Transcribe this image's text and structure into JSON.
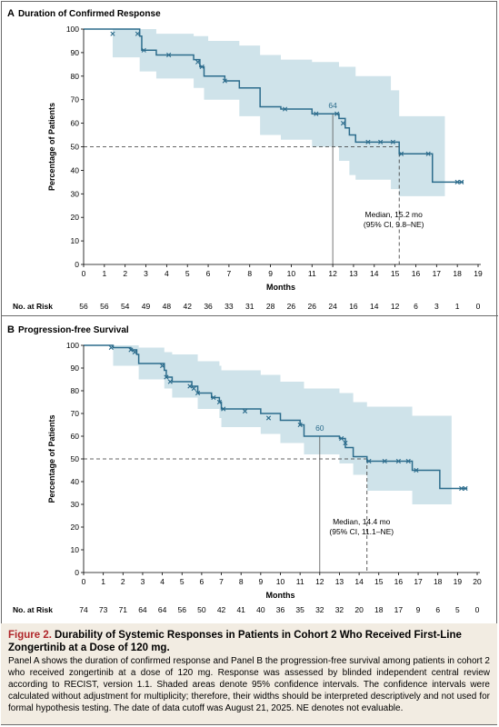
{
  "panels": [
    {
      "letter": "A",
      "title": "Duration of Confirmed Response",
      "ylabel": "Percentage of Patients",
      "xlabel": "Months",
      "at_risk_label": "No. at Risk",
      "at_risk": [
        "56",
        "56",
        "54",
        "49",
        "48",
        "42",
        "36",
        "33",
        "31",
        "28",
        "26",
        "26",
        "24",
        "16",
        "14",
        "12",
        "6",
        "3",
        "1",
        "0"
      ],
      "annotation_value": "64",
      "median_line1": "Median, 15.2 mo",
      "median_line2": "(95% CI, 9.8–NE)"
    },
    {
      "letter": "B",
      "title": "Progression-free Survival",
      "ylabel": "Percentage of Patients",
      "xlabel": "Months",
      "at_risk_label": "No. at Risk",
      "at_risk": [
        "74",
        "73",
        "71",
        "64",
        "64",
        "56",
        "50",
        "42",
        "41",
        "40",
        "36",
        "35",
        "32",
        "32",
        "20",
        "18",
        "17",
        "9",
        "6",
        "5",
        "0"
      ],
      "annotation_value": "60",
      "median_line1": "Median, 14.4 mo",
      "median_line2": "(95% CI, 11.1–NE)"
    }
  ],
  "chart_data": [
    {
      "type": "line",
      "title": "Duration of Confirmed Response",
      "xlabel": "Months",
      "ylabel": "Percentage of Patients",
      "xlim": [
        0,
        19
      ],
      "ylim": [
        0,
        100
      ],
      "xticks": [
        0,
        1,
        2,
        3,
        4,
        5,
        6,
        7,
        8,
        9,
        10,
        11,
        12,
        13,
        14,
        15,
        16,
        17,
        18,
        19
      ],
      "yticks": [
        0,
        10,
        20,
        30,
        40,
        50,
        60,
        70,
        80,
        90,
        100
      ],
      "color": "#2c6c8c",
      "ci_color": "#cfe3ea",
      "series": [
        {
          "steps": [
            [
              0,
              100
            ],
            [
              2.7,
              97
            ],
            [
              2.8,
              91
            ],
            [
              3.5,
              89
            ],
            [
              5.3,
              87
            ],
            [
              5.6,
              84
            ],
            [
              5.8,
              80
            ],
            [
              6.8,
              78
            ],
            [
              7.5,
              75
            ],
            [
              8.5,
              67
            ],
            [
              9.5,
              66
            ],
            [
              11,
              64
            ],
            [
              12.3,
              62
            ],
            [
              12.6,
              58
            ],
            [
              12.8,
              55
            ],
            [
              13.1,
              52
            ],
            [
              13.5,
              52
            ],
            [
              14.8,
              52
            ],
            [
              15.2,
              47
            ],
            [
              16.8,
              35
            ],
            [
              18.3,
              35
            ]
          ],
          "censor": [
            [
              1.4,
              98
            ],
            [
              2.6,
              98
            ],
            [
              2.9,
              91
            ],
            [
              4.1,
              89
            ],
            [
              5.5,
              86
            ],
            [
              5.7,
              84
            ],
            [
              6.8,
              78
            ],
            [
              9.7,
              66
            ],
            [
              11.2,
              64
            ],
            [
              12.2,
              64
            ],
            [
              12.5,
              60
            ],
            [
              13.7,
              52
            ],
            [
              14.3,
              52
            ],
            [
              14.9,
              52
            ],
            [
              15.3,
              47
            ],
            [
              16.6,
              47
            ],
            [
              18,
              35
            ],
            [
              18.2,
              35
            ]
          ],
          "ci_upper": [
            [
              0,
              100
            ],
            [
              2.7,
              100
            ],
            [
              3.5,
              98
            ],
            [
              5.3,
              97
            ],
            [
              6,
              95
            ],
            [
              7.5,
              93
            ],
            [
              8.5,
              89
            ],
            [
              9.5,
              87
            ],
            [
              11,
              86
            ],
            [
              12.3,
              84
            ],
            [
              13.1,
              80
            ],
            [
              14.8,
              74
            ],
            [
              15.2,
              63
            ],
            [
              16.8,
              63
            ]
          ],
          "ci_lower": [
            [
              0,
              100
            ],
            [
              1.4,
              88
            ],
            [
              2.7,
              82
            ],
            [
              3.5,
              79
            ],
            [
              5.3,
              75
            ],
            [
              5.8,
              70
            ],
            [
              7.5,
              63
            ],
            [
              8.5,
              55
            ],
            [
              9.5,
              53
            ],
            [
              11,
              50
            ],
            [
              12.3,
              44
            ],
            [
              12.8,
              38
            ],
            [
              13.1,
              36
            ],
            [
              14.8,
              32
            ],
            [
              15.2,
              29
            ],
            [
              16.8,
              29
            ]
          ]
        }
      ],
      "reference": {
        "y": 50,
        "x_median": 15.2,
        "x_at_label": 12,
        "at_label": "64"
      },
      "annotations": [
        "64",
        "Median, 15.2 mo",
        "(95% CI, 9.8–NE)"
      ]
    },
    {
      "type": "line",
      "title": "Progression-free Survival",
      "xlabel": "Months",
      "ylabel": "Percentage of Patients",
      "xlim": [
        0,
        20
      ],
      "ylim": [
        0,
        100
      ],
      "xticks": [
        0,
        1,
        2,
        3,
        4,
        5,
        6,
        7,
        8,
        9,
        10,
        11,
        12,
        13,
        14,
        15,
        16,
        17,
        18,
        19,
        20
      ],
      "yticks": [
        0,
        10,
        20,
        30,
        40,
        50,
        60,
        70,
        80,
        90,
        100
      ],
      "color": "#2c6c8c",
      "ci_color": "#cfe3ea",
      "series": [
        {
          "steps": [
            [
              0,
              100
            ],
            [
              1.5,
              99
            ],
            [
              2.4,
              98
            ],
            [
              2.7,
              96
            ],
            [
              2.8,
              92
            ],
            [
              4.1,
              89
            ],
            [
              4.2,
              86
            ],
            [
              4.5,
              84
            ],
            [
              5.5,
              82
            ],
            [
              5.8,
              79
            ],
            [
              6.5,
              77
            ],
            [
              6.9,
              75
            ],
            [
              7,
              72
            ],
            [
              9,
              70
            ],
            [
              10,
              67
            ],
            [
              11,
              65
            ],
            [
              11.2,
              60
            ],
            [
              13,
              59
            ],
            [
              13.3,
              55
            ],
            [
              13.7,
              51
            ],
            [
              14.4,
              49
            ],
            [
              16.7,
              45
            ],
            [
              18.1,
              37
            ],
            [
              19.5,
              37
            ]
          ],
          "censor": [
            [
              1.4,
              99
            ],
            [
              2.4,
              98
            ],
            [
              2.6,
              97
            ],
            [
              4,
              91
            ],
            [
              4.2,
              86
            ],
            [
              4.4,
              84
            ],
            [
              5.4,
              82
            ],
            [
              5.6,
              81
            ],
            [
              5.8,
              79
            ],
            [
              6.6,
              77
            ],
            [
              6.9,
              75
            ],
            [
              7.1,
              72
            ],
            [
              8.2,
              71
            ],
            [
              9.4,
              68
            ],
            [
              11,
              65
            ],
            [
              13.1,
              59
            ],
            [
              13.3,
              57
            ],
            [
              14.5,
              49
            ],
            [
              15.3,
              49
            ],
            [
              16,
              49
            ],
            [
              16.5,
              49
            ],
            [
              16.9,
              45
            ],
            [
              19.2,
              37
            ],
            [
              19.4,
              37
            ]
          ],
          "ci_upper": [
            [
              0,
              100
            ],
            [
              1.5,
              100
            ],
            [
              2.8,
              99
            ],
            [
              4.1,
              97
            ],
            [
              4.5,
              96
            ],
            [
              5.8,
              93
            ],
            [
              6.9,
              91
            ],
            [
              7,
              89
            ],
            [
              9,
              87
            ],
            [
              10,
              84
            ],
            [
              11.2,
              81
            ],
            [
              13,
              79
            ],
            [
              13.7,
              75
            ],
            [
              14.4,
              73
            ],
            [
              16.7,
              69
            ],
            [
              18.1,
              69
            ]
          ],
          "ci_lower": [
            [
              0,
              100
            ],
            [
              1.5,
              91
            ],
            [
              2.8,
              85
            ],
            [
              4.1,
              81
            ],
            [
              4.5,
              77
            ],
            [
              5.8,
              72
            ],
            [
              6.9,
              68
            ],
            [
              7,
              64
            ],
            [
              9,
              61
            ],
            [
              10,
              57
            ],
            [
              11.2,
              52
            ],
            [
              13,
              48
            ],
            [
              13.7,
              43
            ],
            [
              14.4,
              36
            ],
            [
              16.7,
              30
            ],
            [
              18.1,
              30
            ]
          ]
        }
      ],
      "reference": {
        "y": 50,
        "x_median": 14.4,
        "x_at_label": 12,
        "at_label": "60"
      },
      "annotations": [
        "60",
        "Median, 14.4 mo",
        "(95% CI, 11.1–NE)"
      ]
    }
  ],
  "caption": {
    "label": "Figure 2.",
    "title": "Durability of Systemic Responses in Patients in Cohort 2 Who Received First-Line Zongertinib at a Dose of 120 mg.",
    "body": "Panel A shows the duration of confirmed response and Panel B the progression-free survival among patients in cohort 2 who received zongertinib at a dose of 120 mg. Response was assessed by blinded independent central review according to RECIST, version 1.1. Shaded areas denote 95% confidence intervals. The confidence intervals were calculated without adjustment for multiplicity; therefore, their widths should be interpreted descriptively and not used for formal hypothesis testing. The date of data cutoff was August 21, 2025. NE denotes not evaluable."
  }
}
